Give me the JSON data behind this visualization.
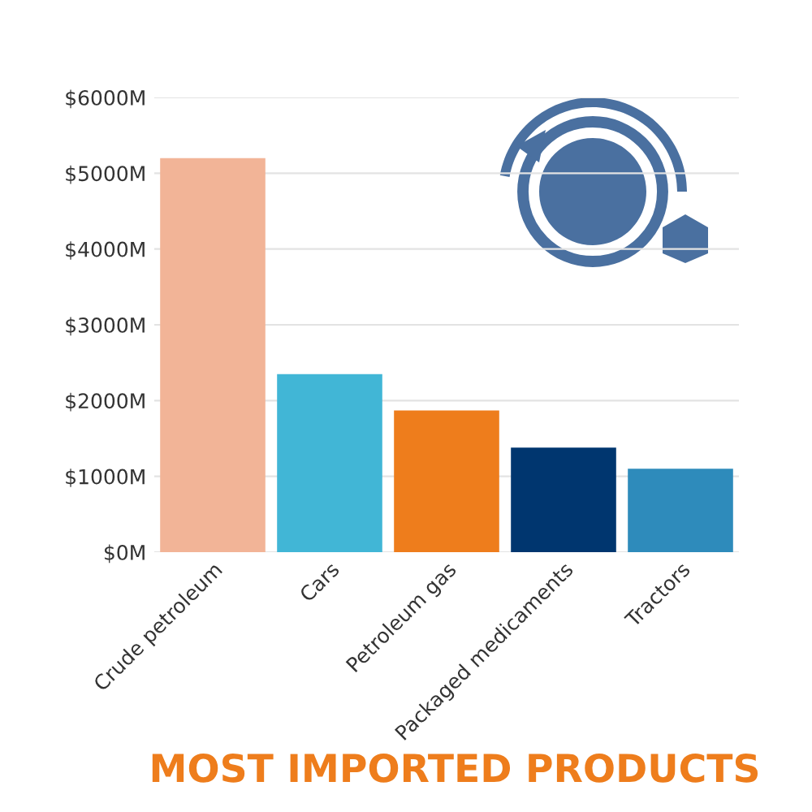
{
  "chart_data": {
    "type": "bar",
    "title": "MOST IMPORTED PRODUCTS",
    "categories": [
      "Crude petroleum",
      "Cars",
      "Petroleum gas",
      "Packaged medicaments",
      "Tractors"
    ],
    "values": [
      5200,
      2350,
      1870,
      1380,
      1100
    ],
    "colors": [
      "#f2b497",
      "#41b6d6",
      "#ee7d1c",
      "#00366f",
      "#2e8bbb"
    ],
    "ylim": [
      0,
      6000
    ],
    "yticks": [
      {
        "value": 0,
        "label": "$0M"
      },
      {
        "value": 1000,
        "label": "$1000M"
      },
      {
        "value": 2000,
        "label": "$2000M"
      },
      {
        "value": 3000,
        "label": "$3000M"
      },
      {
        "value": 4000,
        "label": "$4000M"
      },
      {
        "value": 5000,
        "label": "$5000M"
      },
      {
        "value": 6000,
        "label": "$6000M"
      }
    ],
    "grid": "y"
  }
}
